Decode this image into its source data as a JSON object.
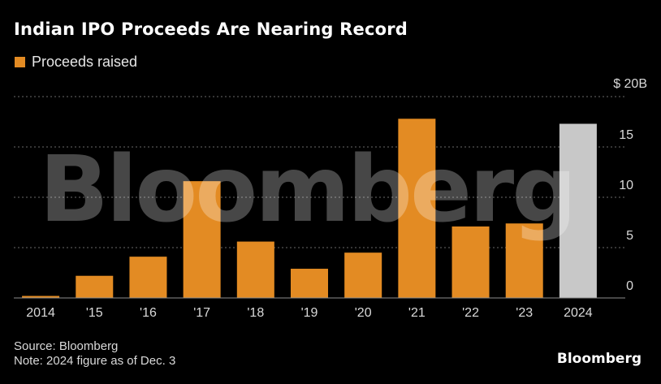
{
  "header": {
    "title": "Indian IPO Proceeds Are Nearing Record"
  },
  "legend": {
    "label": "Proceeds raised",
    "color": "#e38b23"
  },
  "chart_data": {
    "type": "bar",
    "title": "Indian IPO Proceeds Are Nearing Record",
    "categories": [
      "2014",
      "'15",
      "'16",
      "'17",
      "'18",
      "'19",
      "'20",
      "'21",
      "'22",
      "'23",
      "2024"
    ],
    "series": [
      {
        "name": "Proceeds raised",
        "values": [
          0.2,
          2.2,
          4.1,
          11.6,
          5.6,
          2.9,
          4.5,
          17.8,
          7.1,
          7.4,
          17.3
        ],
        "colors": [
          "#e38b23",
          "#e38b23",
          "#e38b23",
          "#e38b23",
          "#e38b23",
          "#e38b23",
          "#e38b23",
          "#e38b23",
          "#e38b23",
          "#e38b23",
          "#c8c8c8"
        ]
      }
    ],
    "y_ticks": [
      0,
      5,
      10,
      15,
      20
    ],
    "y_tick_labels": [
      "0",
      "5",
      "10",
      "15",
      "$ 20B"
    ],
    "ylim": [
      0,
      20
    ],
    "grid": true,
    "y_axis_side": "right"
  },
  "watermark": "Bloomberg",
  "footer": {
    "source": "Source: Bloomberg",
    "note": "Note: 2024 figure as of Dec. 3"
  },
  "brand": "Bloomberg"
}
